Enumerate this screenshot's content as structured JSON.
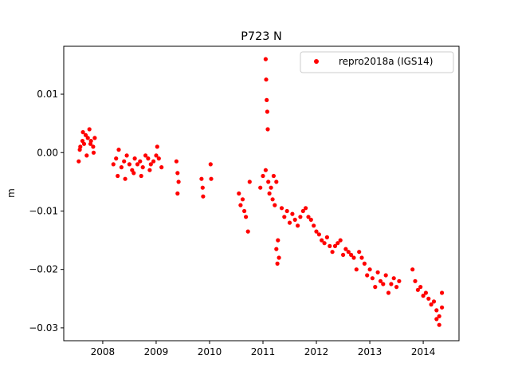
{
  "chart_data": {
    "type": "scatter",
    "title": "P723 N",
    "xlabel": "",
    "ylabel": "m",
    "xlim": [
      2007.27,
      2014.67
    ],
    "ylim": [
      -0.0322,
      0.0182
    ],
    "x_ticks": [
      2008,
      2009,
      2010,
      2011,
      2012,
      2013,
      2014
    ],
    "x_tick_labels": [
      "2008",
      "2009",
      "2010",
      "2011",
      "2012",
      "2013",
      "2014"
    ],
    "y_ticks": [
      -0.03,
      -0.02,
      -0.01,
      0.0,
      0.01
    ],
    "y_tick_labels": [
      "−0.03",
      "−0.02",
      "−0.01",
      "0.00",
      "0.01"
    ],
    "grid": false,
    "legend_position": "top-right",
    "marker_color": "#ff0000",
    "series": [
      {
        "name": "repro2018a (IGS14)",
        "x": [
          2007.55,
          2007.58,
          2007.62,
          2007.65,
          2007.68,
          2007.72,
          2007.75,
          2007.78,
          2007.82,
          2007.85,
          2007.57,
          2007.63,
          2007.7,
          2007.77,
          2007.83,
          2008.2,
          2008.25,
          2008.3,
          2008.35,
          2008.4,
          2008.45,
          2008.5,
          2008.55,
          2008.6,
          2008.65,
          2008.7,
          2008.75,
          2008.8,
          2008.85,
          2008.9,
          2008.95,
          2009.0,
          2009.05,
          2009.1,
          2008.28,
          2008.42,
          2008.58,
          2008.72,
          2008.88,
          2009.02,
          2009.38,
          2009.4,
          2009.42,
          2009.4,
          2009.85,
          2009.87,
          2009.88,
          2010.02,
          2010.03,
          2010.55,
          2010.58,
          2010.62,
          2010.65,
          2010.68,
          2010.72,
          2010.75,
          2010.95,
          2011.0,
          2011.05,
          2011.05,
          2011.06,
          2011.07,
          2011.08,
          2011.09,
          2011.1,
          2011.12,
          2011.15,
          2011.18,
          2011.2,
          2011.22,
          2011.25,
          2011.28,
          2011.3,
          2011.25,
          2011.27,
          2011.35,
          2011.4,
          2011.45,
          2011.5,
          2011.55,
          2011.6,
          2011.65,
          2011.7,
          2011.75,
          2011.8,
          2011.85,
          2011.9,
          2011.95,
          2012.0,
          2012.05,
          2012.1,
          2012.15,
          2012.2,
          2012.25,
          2012.3,
          2012.35,
          2012.4,
          2012.45,
          2012.5,
          2012.55,
          2012.6,
          2012.65,
          2012.7,
          2012.75,
          2012.8,
          2012.85,
          2012.9,
          2012.95,
          2013.0,
          2013.05,
          2013.1,
          2013.15,
          2013.2,
          2013.25,
          2013.3,
          2013.35,
          2013.4,
          2013.45,
          2013.5,
          2013.55,
          2013.8,
          2013.85,
          2013.9,
          2013.95,
          2014.0,
          2014.05,
          2014.1,
          2014.15,
          2014.2,
          2014.25,
          2014.3,
          2014.35,
          2014.3,
          2014.25,
          2014.35
        ],
        "y": [
          -0.0015,
          0.001,
          0.002,
          0.0015,
          0.003,
          0.0025,
          0.004,
          0.002,
          0.001,
          0.0025,
          0.0005,
          0.0035,
          -0.0005,
          0.0015,
          0.0,
          -0.002,
          -0.001,
          0.0005,
          -0.0025,
          -0.0015,
          -0.0005,
          -0.002,
          -0.003,
          -0.001,
          -0.002,
          -0.0015,
          -0.0025,
          -0.0005,
          -0.001,
          -0.002,
          -0.0015,
          -0.0005,
          -0.001,
          -0.0025,
          -0.004,
          -0.0045,
          -0.0035,
          -0.004,
          -0.003,
          0.001,
          -0.0015,
          -0.0035,
          -0.005,
          -0.007,
          -0.0045,
          -0.006,
          -0.0075,
          -0.002,
          -0.0045,
          -0.007,
          -0.009,
          -0.008,
          -0.01,
          -0.011,
          -0.0135,
          -0.005,
          -0.006,
          -0.004,
          -0.003,
          0.016,
          0.0125,
          0.009,
          0.007,
          0.004,
          -0.005,
          -0.007,
          -0.006,
          -0.008,
          -0.004,
          -0.009,
          -0.005,
          -0.015,
          -0.018,
          -0.0165,
          -0.019,
          -0.0095,
          -0.011,
          -0.01,
          -0.012,
          -0.0105,
          -0.0115,
          -0.0125,
          -0.011,
          -0.01,
          -0.0095,
          -0.011,
          -0.0115,
          -0.0125,
          -0.0135,
          -0.014,
          -0.015,
          -0.0155,
          -0.0145,
          -0.016,
          -0.017,
          -0.016,
          -0.0155,
          -0.015,
          -0.0175,
          -0.0165,
          -0.017,
          -0.0175,
          -0.018,
          -0.02,
          -0.017,
          -0.018,
          -0.019,
          -0.021,
          -0.02,
          -0.0215,
          -0.023,
          -0.0205,
          -0.022,
          -0.0225,
          -0.021,
          -0.024,
          -0.0225,
          -0.0215,
          -0.023,
          -0.022,
          -0.02,
          -0.022,
          -0.0235,
          -0.023,
          -0.0245,
          -0.024,
          -0.025,
          -0.026,
          -0.0255,
          -0.027,
          -0.028,
          -0.0265,
          -0.0295,
          -0.0285,
          -0.024
        ]
      }
    ]
  }
}
